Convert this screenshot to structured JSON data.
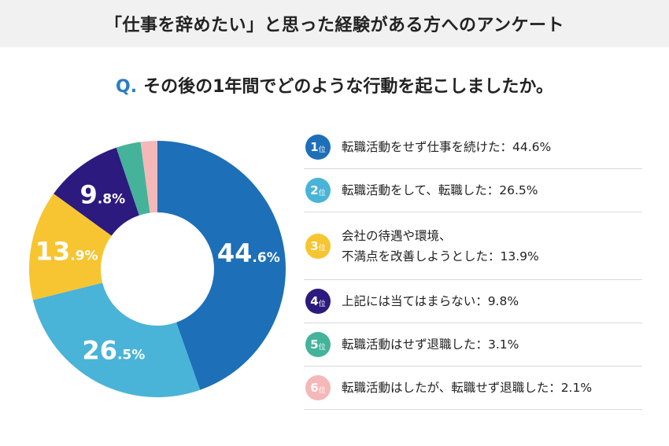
{
  "header": {
    "title": "「仕事を辞めたい」と思った経験がある方へのアンケート"
  },
  "question": {
    "prefix": "Q.",
    "text": "その後の1年間でどのような行動を起こしましたか。"
  },
  "rank_suffix": "位",
  "chart_data": {
    "type": "pie",
    "title": "",
    "unit": "%",
    "categories": [
      "転職活動をせず仕事を続けた",
      "転職活動をして、転職した",
      "会社の待遇や環境、不満点を改善しようとした",
      "上記には当てはまらない",
      "転職活動はせず退職した",
      "転職活動はしたが、転職せず退職した"
    ],
    "values": [
      44.6,
      26.5,
      13.9,
      9.8,
      3.1,
      2.1
    ],
    "colors": [
      "#1d6fb8",
      "#4ab3d8",
      "#f7c531",
      "#2c1a7e",
      "#44b39a",
      "#f5b8b8"
    ],
    "slice_labels": [
      {
        "whole": "44",
        "fraction": ".6%"
      },
      {
        "whole": "26",
        "fraction": ".5%"
      },
      {
        "whole": "13",
        "fraction": ".9%"
      },
      {
        "whole": "9",
        "fraction": ".8%"
      },
      null,
      null
    ]
  },
  "legend": [
    {
      "rank": "1",
      "lines": [
        "転職活動をせず仕事を続けた：44.6%"
      ]
    },
    {
      "rank": "2",
      "lines": [
        "転職活動をして、転職した：26.5%"
      ]
    },
    {
      "rank": "3",
      "lines": [
        "会社の待遇や環境、",
        "不満点を改善しようとした：13.9%"
      ]
    },
    {
      "rank": "4",
      "lines": [
        "上記には当てはまらない：9.8%"
      ]
    },
    {
      "rank": "5",
      "lines": [
        "転職活動はせず退職した：3.1%"
      ]
    },
    {
      "rank": "6",
      "lines": [
        "転職活動はしたが、転職せず退職した：2.1%"
      ]
    }
  ]
}
